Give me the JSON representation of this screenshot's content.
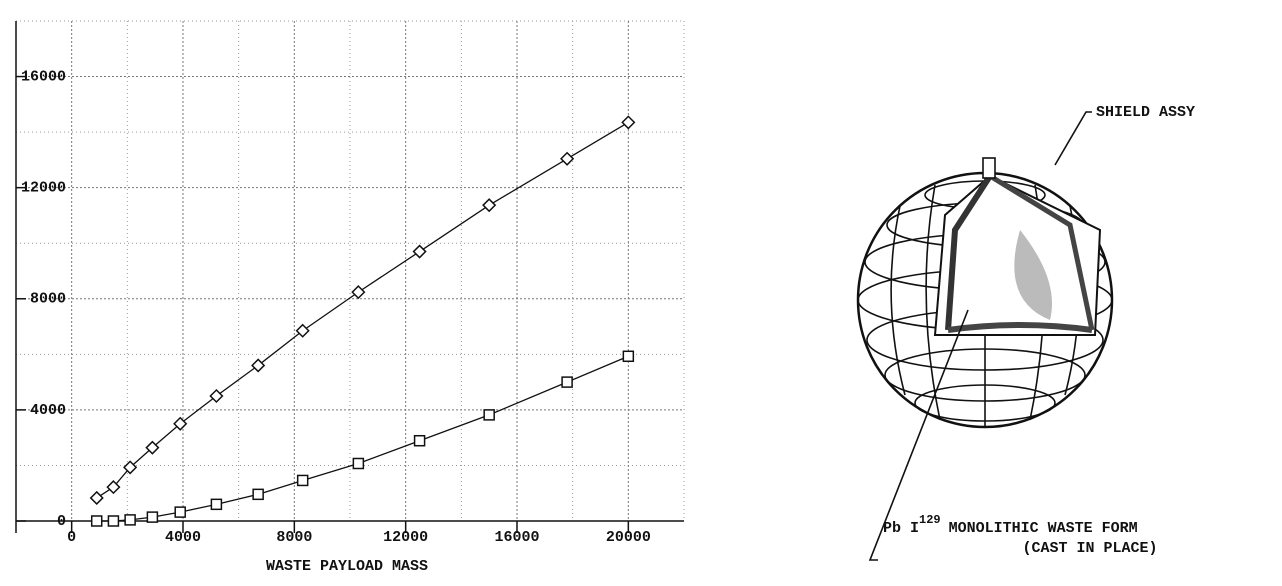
{
  "chart_data": {
    "type": "line",
    "xlabel": "WASTE PAYLOAD MASS",
    "x": [
      900,
      1500,
      2100,
      2900,
      3900,
      5200,
      6700,
      8300,
      10300,
      12500,
      15000,
      17800,
      20000
    ],
    "series": [
      {
        "marker": "diamond",
        "color": "#111111",
        "values": [
          830,
          1220,
          1930,
          2640,
          3500,
          4500,
          5600,
          6850,
          8240,
          9700,
          11370,
          13040,
          14350
        ]
      },
      {
        "marker": "square",
        "color": "#111111",
        "values": [
          0,
          0,
          40,
          140,
          320,
          600,
          960,
          1460,
          2070,
          2890,
          3820,
          5000,
          5930
        ]
      }
    ],
    "xlim": [
      -2000,
      22000
    ],
    "ylim": [
      0,
      18000
    ],
    "xticks": [
      0,
      4000,
      8000,
      12000,
      16000,
      20000
    ],
    "yticks": [
      0,
      4000,
      8000,
      12000,
      16000
    ],
    "minor_xticks": [
      -2000,
      2000,
      6000,
      10000,
      14000,
      18000,
      22000
    ],
    "minor_yticks": [
      2000,
      6000,
      10000,
      14000,
      18000
    ],
    "grid": true
  },
  "diagram": {
    "shield_label": "SHIELD ASSY",
    "waste_form": {
      "prefix": "Pb I",
      "superscript": "129",
      "text": "MONOLITHIC WASTE FORM"
    },
    "waste_form_note": "(CAST IN PLACE)"
  }
}
